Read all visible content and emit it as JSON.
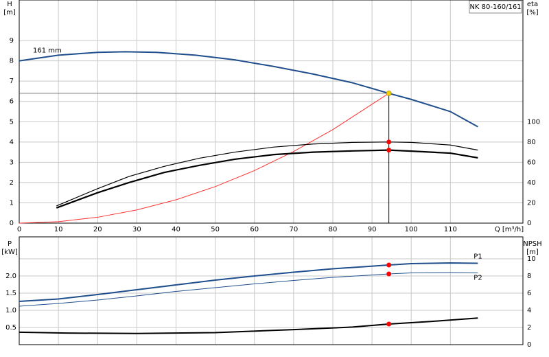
{
  "chart_data": [
    {
      "type": "line",
      "title": "NK 80-160/161",
      "y_label": "H",
      "y_unit": "[m]",
      "y2_label": "eta",
      "y2_unit": "[%]",
      "x_label": "Q [m³/h]",
      "xlim": [
        0,
        128.5
      ],
      "xticks": [
        0,
        10,
        20,
        30,
        40,
        50,
        60,
        70,
        80,
        90,
        100,
        110
      ],
      "ylim": [
        0,
        11
      ],
      "yticks": [
        0,
        1,
        2,
        3,
        4,
        5,
        6,
        7,
        8,
        9
      ],
      "y2lim": [
        0,
        220
      ],
      "y2ticks": [
        0,
        20,
        40,
        60,
        80,
        100
      ],
      "grid": true,
      "operating_point": 94.3,
      "series": [
        {
          "name": "161 mm",
          "color": "#1f4e8c",
          "width": 2,
          "axis": "y",
          "x": [
            0,
            10,
            20,
            27,
            35,
            45,
            55,
            65,
            75,
            85,
            94.3,
            100,
            110,
            117
          ],
          "values": [
            8.0,
            8.28,
            8.42,
            8.45,
            8.42,
            8.28,
            8.05,
            7.72,
            7.35,
            6.92,
            6.4,
            6.1,
            5.5,
            4.75
          ],
          "marker": "#f5d000"
        },
        {
          "color": "#ff3030",
          "width": 1,
          "axis": "y",
          "x": [
            0,
            10,
            20,
            30,
            40,
            50,
            60,
            70,
            80,
            94.3
          ],
          "values": [
            0,
            0.07,
            0.29,
            0.65,
            1.15,
            1.8,
            2.59,
            3.53,
            4.61,
            6.4
          ]
        },
        {
          "color": "#000000",
          "width": 1.2,
          "axis": "y2",
          "x": [
            9.5,
            20,
            28,
            37,
            46,
            55,
            65,
            75,
            85,
            94.3,
            100,
            110,
            117
          ],
          "values": [
            17,
            34,
            46,
            56,
            64,
            70,
            75,
            78,
            79.6,
            80,
            79.6,
            77,
            72
          ],
          "marker": "#ff0000"
        },
        {
          "color": "#000000",
          "width": 2.2,
          "axis": "y2",
          "x": [
            9.5,
            20,
            28,
            37,
            46,
            55,
            65,
            75,
            85,
            94.3,
            100,
            110,
            117
          ],
          "values": [
            15,
            30,
            40,
            50,
            57,
            63,
            67.6,
            70,
            71.2,
            72,
            71,
            69,
            64.4
          ],
          "marker": "#ff0000"
        }
      ]
    },
    {
      "type": "line",
      "y_label": "P",
      "y_unit": "[kW]",
      "y2_label": "NPSH",
      "y2_unit": "[m]",
      "xlim": [
        0,
        128.5
      ],
      "ylim": [
        0,
        3.14
      ],
      "yticks": [
        0.5,
        {
          "value": 1,
          "label": "1.0"
        },
        1.5,
        {
          "value": 2,
          "label": "2.0"
        }
      ],
      "y2lim": [
        0,
        12.56
      ],
      "y2ticks": [
        0,
        2,
        4,
        6,
        8,
        10
      ],
      "grid": true,
      "operating_point": 94.3,
      "series": [
        {
          "name": "P1",
          "color": "#1f4e8c",
          "width": 2,
          "axis": "y",
          "x": [
            0,
            10,
            20,
            30,
            40,
            50,
            60,
            70,
            80,
            94.3,
            100,
            110,
            117
          ],
          "values": [
            1.26,
            1.33,
            1.46,
            1.6,
            1.74,
            1.88,
            2.0,
            2.11,
            2.21,
            2.32,
            2.36,
            2.38,
            2.37
          ],
          "marker": "#ff0000"
        },
        {
          "name": "P2",
          "color": "#1f4e8c",
          "width": 1,
          "axis": "y",
          "x": [
            0,
            10,
            20,
            30,
            40,
            50,
            60,
            70,
            80,
            94.3,
            100,
            110,
            117
          ],
          "values": [
            1.12,
            1.2,
            1.3,
            1.42,
            1.55,
            1.66,
            1.77,
            1.87,
            1.96,
            2.06,
            2.09,
            2.1,
            2.09
          ],
          "marker": "#ff0000"
        },
        {
          "color": "#000000",
          "width": 2,
          "axis": "y2",
          "x": [
            0,
            12,
            30,
            50,
            70,
            85,
            94.3,
            105,
            117
          ],
          "values": [
            1.45,
            1.35,
            1.3,
            1.4,
            1.75,
            2.05,
            2.4,
            2.7,
            3.1
          ],
          "marker": "#ff0000"
        }
      ]
    }
  ]
}
